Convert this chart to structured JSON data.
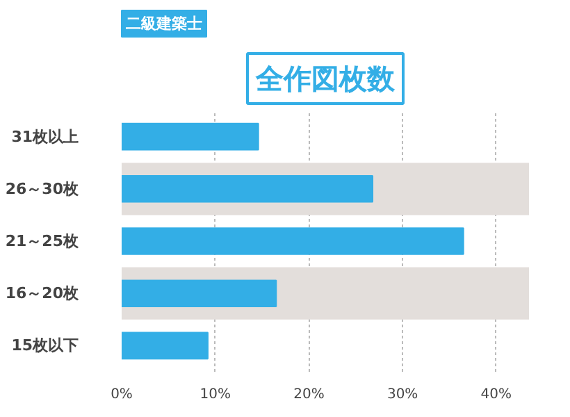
{
  "chart_data": {
    "type": "bar",
    "orientation": "horizontal",
    "title": "全作図枚数",
    "subtitle": "二級建築士",
    "categories": [
      "31枚以上",
      "26～30枚",
      "21～25枚",
      "16～20枚",
      "15枚以下"
    ],
    "values": [
      14.6,
      26.8,
      36.5,
      16.5,
      9.2
    ],
    "color": "#33aee6",
    "xlim": [
      0,
      43.5
    ],
    "xticks": [
      {
        "value": 0,
        "label": "0%"
      },
      {
        "value": 10,
        "label": "10%"
      },
      {
        "value": 20,
        "label": "20%"
      },
      {
        "value": 30,
        "label": "30%"
      },
      {
        "value": 40,
        "label": "40%"
      }
    ],
    "grid": "x"
  }
}
